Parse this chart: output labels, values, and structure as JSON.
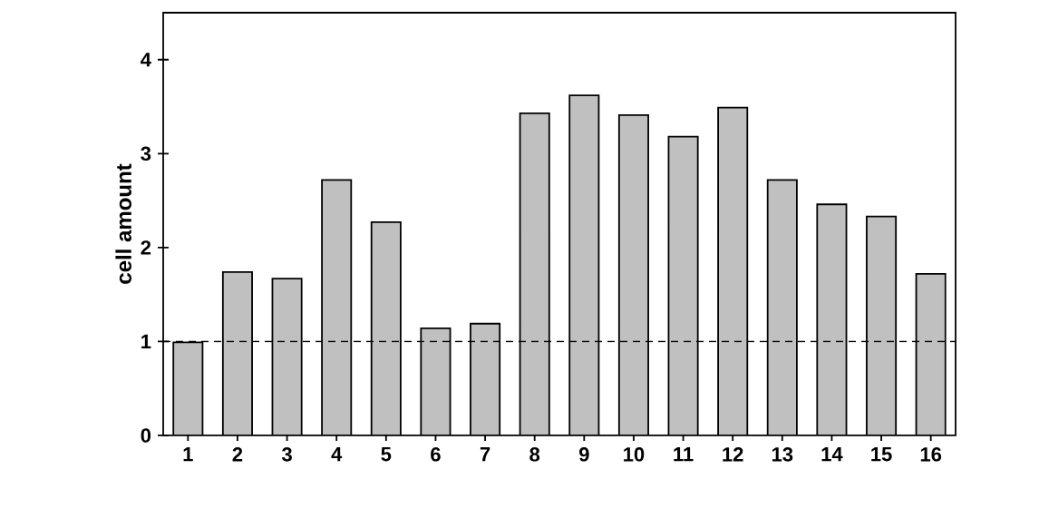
{
  "chart_data": {
    "type": "bar",
    "ylabel": "cell amount",
    "categories": [
      "1",
      "2",
      "3",
      "4",
      "5",
      "6",
      "7",
      "8",
      "9",
      "10",
      "11",
      "12",
      "13",
      "14",
      "15",
      "16"
    ],
    "values": [
      0.99,
      1.74,
      1.67,
      2.72,
      2.27,
      1.14,
      1.19,
      3.43,
      3.62,
      3.41,
      3.18,
      3.49,
      2.72,
      2.46,
      2.33,
      1.72
    ],
    "color": "#c0c0c0",
    "ylim": [
      0,
      4.5
    ],
    "yticks": [
      0,
      1,
      2,
      3,
      4
    ],
    "ref_lines": [
      {
        "axis": "y",
        "value": 1,
        "color": "#000000",
        "line_style": "dashed"
      }
    ]
  }
}
